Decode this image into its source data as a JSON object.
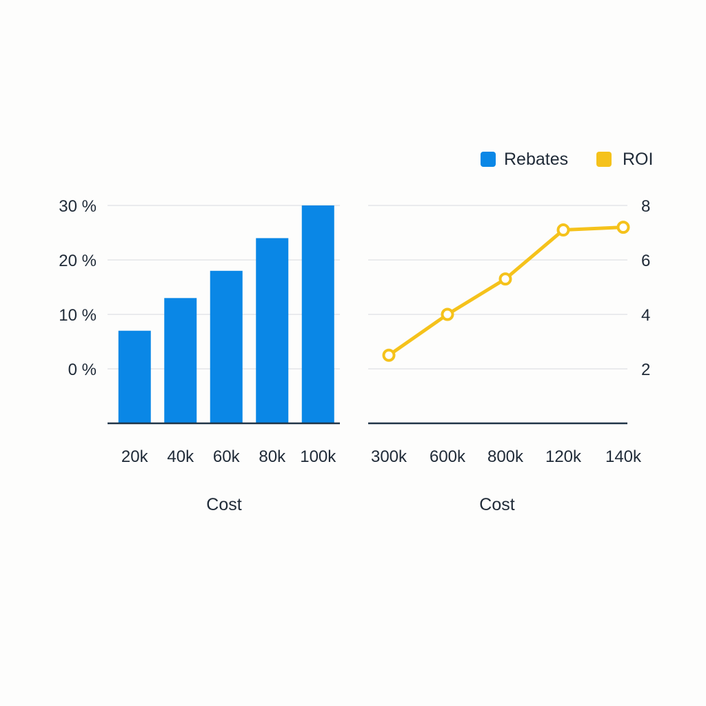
{
  "legend": {
    "items": [
      {
        "label": "Rebates",
        "color": "#0a87e6"
      },
      {
        "label": "ROI",
        "color": "#f5c21b"
      }
    ],
    "placement": "top-right"
  },
  "chart_data": [
    {
      "type": "bar",
      "series_name": "Rebates",
      "categories": [
        "20k",
        "40k",
        "60k",
        "80k",
        "100k"
      ],
      "values": [
        7,
        13,
        18,
        24,
        30
      ],
      "xlabel": "Cost",
      "ylabel": "",
      "ytick_labels": [
        "0 %",
        "10 %",
        "20 %",
        "30 %"
      ],
      "ylim": [
        -10,
        30
      ],
      "grid": true,
      "color": "#0a87e6"
    },
    {
      "type": "line",
      "series_name": "ROI",
      "categories": [
        "300k",
        "600k",
        "800k",
        "120k",
        "140k"
      ],
      "values": [
        2.5,
        4.0,
        5.3,
        7.1,
        7.2
      ],
      "xlabel": "Cost",
      "ylabel": "",
      "ytick_labels": [
        "2",
        "4",
        "6",
        "8"
      ],
      "ylim": [
        0,
        8
      ],
      "grid": true,
      "color": "#f5c21b"
    }
  ]
}
